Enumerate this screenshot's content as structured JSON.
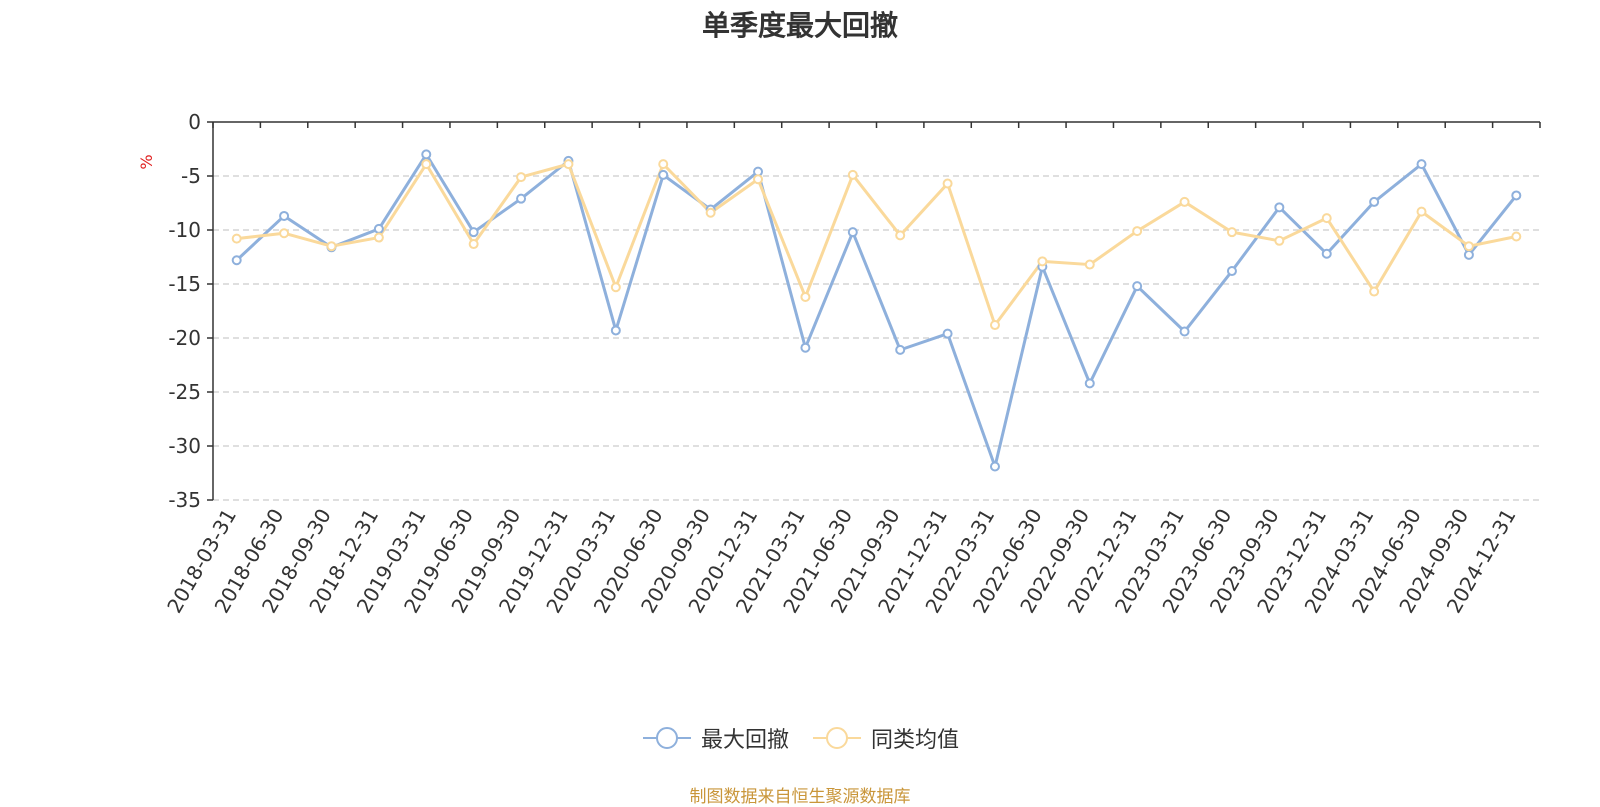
{
  "chart_data": {
    "type": "line",
    "title": "单季度最大回撤",
    "ylabel": "%",
    "ylim": [
      -35,
      0
    ],
    "yticks": [
      0,
      -5,
      -10,
      -15,
      -20,
      -25,
      -30,
      -35
    ],
    "grid": true,
    "legend_position": "bottom",
    "categories": [
      "2018-03-31",
      "2018-06-30",
      "2018-09-30",
      "2018-12-31",
      "2019-03-31",
      "2019-06-30",
      "2019-09-30",
      "2019-12-31",
      "2020-03-31",
      "2020-06-30",
      "2020-09-30",
      "2020-12-31",
      "2021-03-31",
      "2021-06-30",
      "2021-09-30",
      "2021-12-31",
      "2022-03-31",
      "2022-06-30",
      "2022-09-30",
      "2022-12-31",
      "2023-03-31",
      "2023-06-30",
      "2023-09-30",
      "2023-12-31",
      "2024-03-31",
      "2024-06-30",
      "2024-09-30",
      "2024-12-31"
    ],
    "series": [
      {
        "name": "最大回撤",
        "color": "#8eb0dc",
        "values": [
          -12.8,
          -8.7,
          -11.6,
          -9.9,
          -3.0,
          -10.2,
          -7.1,
          -3.6,
          -19.3,
          -4.9,
          -8.1,
          -4.6,
          -20.9,
          -10.2,
          -21.1,
          -19.6,
          -31.9,
          -13.4,
          -24.2,
          -15.2,
          -19.4,
          -13.8,
          -7.9,
          -12.2,
          -7.4,
          -3.9,
          -12.3,
          -6.8
        ]
      },
      {
        "name": "同类均值",
        "color": "#fad99b",
        "values": [
          -10.8,
          -10.3,
          -11.5,
          -10.7,
          -3.9,
          -11.3,
          -5.1,
          -3.9,
          -15.3,
          -3.9,
          -8.4,
          -5.3,
          -16.2,
          -4.9,
          -10.5,
          -5.7,
          -18.8,
          -12.9,
          -13.2,
          -10.1,
          -7.4,
          -10.2,
          -11.0,
          -8.9,
          -15.7,
          -8.3,
          -11.5,
          -10.6
        ]
      }
    ]
  },
  "source_text": "制图数据来自恒生聚源数据库",
  "source_color": "#c9963a",
  "axis_label_color": "#e02020"
}
